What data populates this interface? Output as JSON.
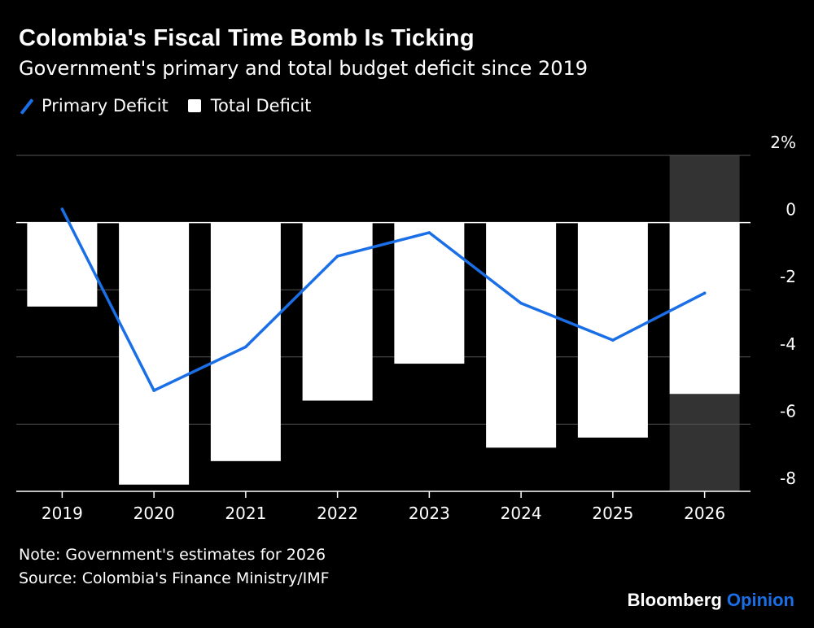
{
  "title": "Colombia's Fiscal Time Bomb Is Ticking",
  "subtitle": "Government's primary and total budget deficit since 2019",
  "legend": {
    "primary": "Primary Deficit",
    "total": "Total Deficit"
  },
  "colors": {
    "primary_line": "#1a6fe6",
    "total_bar": "#ffffff",
    "estimate_shade": "#333333",
    "grid": "#555555",
    "background": "#000000"
  },
  "note": "Note: Government's estimates for 2026",
  "source": "Source: Colombia's Finance Ministry/IMF",
  "brand": {
    "name": "Bloomberg",
    "accent": "Opinion"
  },
  "chart_data": {
    "type": "bar",
    "title": "Colombia's Fiscal Time Bomb Is Ticking",
    "categories": [
      "2019",
      "2020",
      "2021",
      "2022",
      "2023",
      "2024",
      "2025",
      "2026"
    ],
    "series": [
      {
        "name": "Total Deficit",
        "kind": "bar",
        "values": [
          -2.5,
          -7.8,
          -7.1,
          -5.3,
          -4.2,
          -6.7,
          -6.4,
          -5.1
        ]
      },
      {
        "name": "Primary Deficit",
        "kind": "line",
        "values": [
          0.4,
          -5.0,
          -3.7,
          -1.0,
          -0.3,
          -2.4,
          -3.5,
          -2.1
        ]
      }
    ],
    "ylim": [
      -8,
      2
    ],
    "yticks": [
      2,
      0,
      -2,
      -4,
      -6,
      -8
    ],
    "ytick_labels": [
      "2%",
      "0",
      "-2",
      "-4",
      "-6",
      "-8"
    ],
    "estimate_category": "2026",
    "xlabel": "",
    "ylabel": ""
  }
}
